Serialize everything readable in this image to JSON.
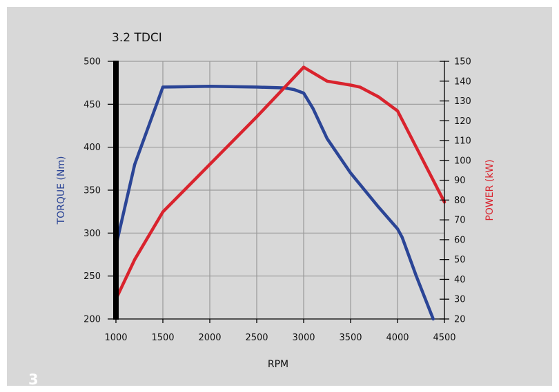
{
  "page": {
    "number": "3"
  },
  "colors": {
    "torque": "#2b4596",
    "power": "#d9232d",
    "grid": "#9a9a9a",
    "background": "#d8d8d8"
  },
  "chart_data": {
    "type": "line",
    "title": "3.2 TDCI",
    "xlabel": "RPM",
    "ylabel_left": "TORQUE (Nm)",
    "ylabel_right": "POWER (kW)",
    "xlim": [
      1000,
      4500
    ],
    "ylim_left": [
      200,
      500
    ],
    "ylim_right": [
      20,
      150
    ],
    "x_ticks": [
      1000,
      1500,
      2000,
      2500,
      3000,
      3500,
      4000,
      4500
    ],
    "y_left_ticks": [
      200,
      250,
      300,
      350,
      400,
      450,
      500
    ],
    "y_right_ticks": [
      20,
      30,
      40,
      50,
      60,
      70,
      80,
      90,
      100,
      110,
      120,
      130,
      140,
      150
    ],
    "grid": true,
    "legend": "none",
    "series": [
      {
        "axis": "left",
        "color": "#2b4596",
        "points": [
          [
            1000,
            285
          ],
          [
            1200,
            380
          ],
          [
            1500,
            470
          ],
          [
            2000,
            471
          ],
          [
            2500,
            470
          ],
          [
            2800,
            469
          ],
          [
            2900,
            467
          ],
          [
            3000,
            463
          ],
          [
            3100,
            445
          ],
          [
            3250,
            410
          ],
          [
            3500,
            370
          ],
          [
            3800,
            330
          ],
          [
            4000,
            305
          ],
          [
            4050,
            295
          ],
          [
            4200,
            250
          ],
          [
            4380,
            200
          ]
        ]
      },
      {
        "axis": "right",
        "color": "#d9232d",
        "points": [
          [
            1000,
            30
          ],
          [
            1200,
            50
          ],
          [
            1500,
            74
          ],
          [
            2000,
            98
          ],
          [
            2500,
            122
          ],
          [
            3000,
            147
          ],
          [
            3250,
            140
          ],
          [
            3500,
            138
          ],
          [
            3600,
            137
          ],
          [
            3800,
            132
          ],
          [
            4000,
            125
          ],
          [
            4250,
            102
          ],
          [
            4500,
            79
          ]
        ]
      }
    ]
  }
}
